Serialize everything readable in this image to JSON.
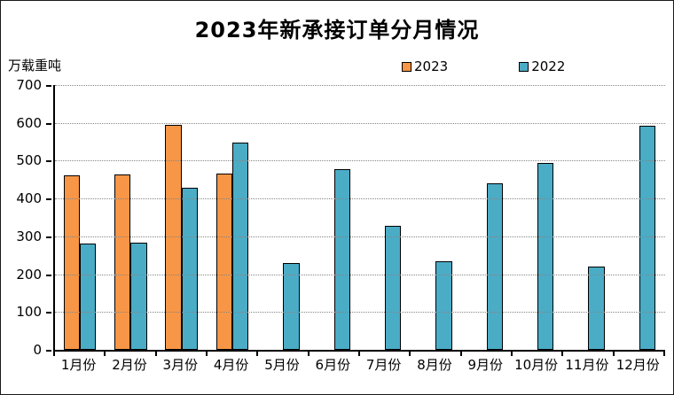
{
  "title": "2023年新承接订单分月情况",
  "y_unit_label": "万载重吨",
  "colors": {
    "series_2023": "#F79646",
    "series_2022": "#4BACC6",
    "bar_border": "#000000",
    "gridline": "#868686",
    "axis": "#000000"
  },
  "chart_data": {
    "type": "bar",
    "title": "2023年新承接订单分月情况",
    "xlabel": "",
    "ylabel": "万载重吨",
    "categories": [
      "1月份",
      "2月份",
      "3月份",
      "4月份",
      "5月份",
      "6月份",
      "7月份",
      "8月份",
      "9月份",
      "10月份",
      "11月份",
      "12月份"
    ],
    "series": [
      {
        "name": "2023",
        "color": "#F79646",
        "values": [
          462,
          464,
          595,
          467,
          null,
          null,
          null,
          null,
          null,
          null,
          null,
          null
        ]
      },
      {
        "name": "2022",
        "color": "#4BACC6",
        "values": [
          282,
          283,
          429,
          549,
          230,
          478,
          327,
          233,
          440,
          495,
          220,
          592
        ]
      }
    ],
    "ylim": [
      0,
      700
    ],
    "ytick_interval": 100,
    "ytick_labels": [
      "0",
      "100",
      "200",
      "300",
      "400",
      "500",
      "600",
      "700"
    ],
    "grid": "horizontal-dotted",
    "legend_position": "top-center"
  }
}
